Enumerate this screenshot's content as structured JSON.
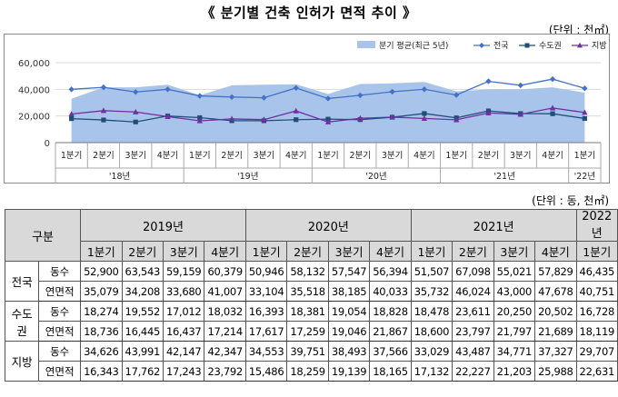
{
  "title": "《 분기별 건축 인허가 면적 추이 》",
  "chart_unit": "(단위 : 천㎡)",
  "table_unit": "(단위 : 동, 천㎡)",
  "chart_data": {
    "type": "line",
    "ylim": [
      0,
      60000
    ],
    "yticks": [
      "60,000",
      "40,000",
      "20,000",
      "0"
    ],
    "categories": [
      "1분기",
      "2분기",
      "3분기",
      "4분기",
      "1분기",
      "2분기",
      "3분기",
      "4분기",
      "1분기",
      "2분기",
      "3분기",
      "4분기",
      "1분기",
      "2분기",
      "3분기",
      "4분기",
      "1분기"
    ],
    "year_labels": [
      "'18년",
      "'19년",
      "'20년",
      "'21년",
      "'22년"
    ],
    "legend_position": "top-right",
    "grid": true,
    "series": [
      {
        "name": "분기 평균(최근 5년)",
        "kind": "area",
        "color": "#a9c4eb",
        "values": [
          33000,
          41500,
          41500,
          43500,
          35500,
          43000,
          43500,
          43800,
          36500,
          44000,
          44500,
          45500,
          38500,
          40000,
          40000,
          41500,
          37500
        ]
      },
      {
        "name": "전국",
        "kind": "line",
        "color": "#4472c4",
        "marker": "diamond",
        "values": [
          40000,
          41500,
          38000,
          40000,
          35079,
          34208,
          33680,
          41007,
          33104,
          35518,
          38185,
          40033,
          35732,
          46024,
          43000,
          47678,
          40751
        ]
      },
      {
        "name": "수도권",
        "kind": "line",
        "color": "#1f4e79",
        "marker": "square",
        "values": [
          18000,
          17000,
          15500,
          20000,
          18736,
          16445,
          16437,
          17214,
          17617,
          17259,
          19046,
          21867,
          18600,
          23797,
          21797,
          21689,
          18119
        ]
      },
      {
        "name": "지방",
        "kind": "line",
        "color": "#7030a0",
        "marker": "triangle",
        "values": [
          21500,
          24000,
          23000,
          19500,
          16343,
          17762,
          17243,
          23792,
          15486,
          18259,
          19139,
          18165,
          17132,
          22227,
          21203,
          25988,
          22631
        ]
      }
    ]
  },
  "table": {
    "header_group": "구분",
    "years": [
      "2019년",
      "2020년",
      "2021년",
      "2022년"
    ],
    "quarters": [
      "1분기",
      "2분기",
      "3분기",
      "4분기",
      "1분기",
      "2분기",
      "3분기",
      "4분기",
      "1분기",
      "2분기",
      "3분기",
      "4분기",
      "1분기"
    ],
    "groups": [
      {
        "label": "전국",
        "rows": [
          {
            "label": "동수",
            "values": [
              "52,900",
              "63,543",
              "59,159",
              "60,379",
              "50,946",
              "58,132",
              "57,547",
              "56,394",
              "51,507",
              "67,098",
              "55,021",
              "57,829",
              "46,435"
            ]
          },
          {
            "label": "연면적",
            "values": [
              "35,079",
              "34,208",
              "33,680",
              "41,007",
              "33,104",
              "35,518",
              "38,185",
              "40,033",
              "35,732",
              "46,024",
              "43,000",
              "47,678",
              "40,751"
            ]
          }
        ]
      },
      {
        "label": "수도권",
        "rows": [
          {
            "label": "동수",
            "values": [
              "18,274",
              "19,552",
              "17,012",
              "18,032",
              "16,393",
              "18,381",
              "19,054",
              "18,828",
              "18,478",
              "23,611",
              "20,250",
              "20,502",
              "16,728"
            ]
          },
          {
            "label": "연면적",
            "values": [
              "18,736",
              "16,445",
              "16,437",
              "17,214",
              "17,617",
              "17,259",
              "19,046",
              "21,867",
              "18,600",
              "23,797",
              "21,797",
              "21,689",
              "18,119"
            ]
          }
        ]
      },
      {
        "label": "지방",
        "rows": [
          {
            "label": "동수",
            "values": [
              "34,626",
              "43,991",
              "42,147",
              "42,347",
              "34,553",
              "39,751",
              "38,493",
              "37,566",
              "33,029",
              "43,487",
              "34,771",
              "37,327",
              "29,707"
            ]
          },
          {
            "label": "연면적",
            "values": [
              "16,343",
              "17,762",
              "17,243",
              "23,792",
              "15,486",
              "18,259",
              "19,139",
              "18,165",
              "17,132",
              "22,227",
              "21,203",
              "25,988",
              "22,631"
            ]
          }
        ]
      }
    ]
  }
}
